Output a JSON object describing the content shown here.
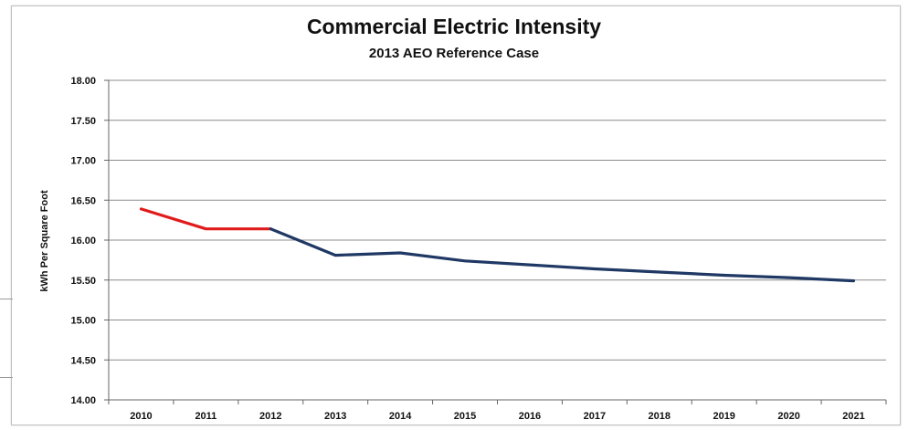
{
  "chart_data": {
    "type": "line",
    "title": "Commercial Electric Intensity",
    "subtitle": "2013 AEO Reference Case",
    "xlabel": "",
    "ylabel": "kWh Per Square Foot",
    "categories": [
      "2010",
      "2011",
      "2012",
      "2013",
      "2014",
      "2015",
      "2016",
      "2017",
      "2018",
      "2019",
      "2020",
      "2021"
    ],
    "ylim": [
      14.0,
      18.0
    ],
    "yticks": [
      "14.00",
      "14.50",
      "15.00",
      "15.50",
      "16.00",
      "16.50",
      "17.00",
      "17.50",
      "18.00"
    ],
    "grid": true,
    "series": [
      {
        "segment": "historical",
        "color": "#e01b1b",
        "x": [
          "2010",
          "2011",
          "2012"
        ],
        "values": [
          16.39,
          16.14,
          16.14
        ]
      },
      {
        "segment": "projected",
        "color": "#1f3864",
        "x": [
          "2012",
          "2013",
          "2014",
          "2015",
          "2016",
          "2017",
          "2018",
          "2019",
          "2020",
          "2021"
        ],
        "values": [
          16.14,
          15.81,
          15.84,
          15.74,
          15.69,
          15.64,
          15.6,
          15.56,
          15.53,
          15.49
        ]
      }
    ]
  }
}
